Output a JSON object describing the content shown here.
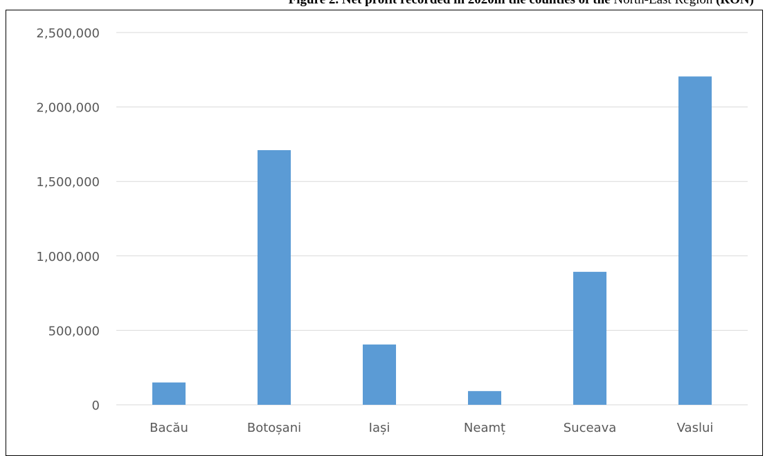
{
  "figure": {
    "title_prefix": "Figure 2.",
    "title_main": " Net profit recorded in 2020in the counties of the ",
    "title_mid": "North-East Region",
    "title_end": " (RON)"
  },
  "chart_data": {
    "type": "bar",
    "title": "Figure 2. Net profit recorded in 2020in the counties of the North-East Region (RON)",
    "categories": [
      "Bacău",
      "Botoșani",
      "Iași",
      "Neamț",
      "Suceava",
      "Vaslui"
    ],
    "values": [
      150000,
      1710000,
      405000,
      92000,
      893000,
      2205000
    ],
    "ylim": [
      0,
      2500000
    ],
    "yticks": [
      0,
      500000,
      1000000,
      1500000,
      2000000,
      2500000
    ],
    "ytick_labels": [
      "0",
      "500,000",
      "1,000,000",
      "1,500,000",
      "2,000,000",
      "2,500,000"
    ],
    "xlabel": "",
    "ylabel": "",
    "grid": true,
    "legend": "none",
    "colors": {
      "bar": "#5b9bd5",
      "grid": "#d9d9d9",
      "axis": "#d9d9d9",
      "tick_text": "#595959"
    }
  }
}
